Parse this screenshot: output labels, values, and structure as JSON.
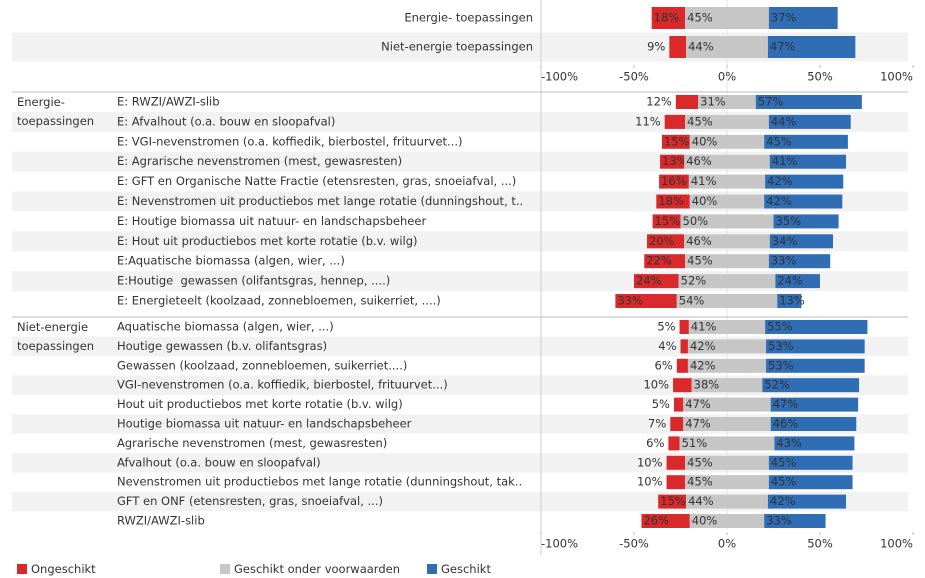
{
  "chart_data": {
    "type": "diverging_bar",
    "xlim": [
      -100,
      100
    ],
    "xticks": [
      {
        "value": -100,
        "label": "-100%"
      },
      {
        "value": -50,
        "label": "-50%"
      },
      {
        "value": 0,
        "label": "0%"
      },
      {
        "value": 50,
        "label": "50%"
      },
      {
        "value": 100,
        "label": "100%"
      }
    ],
    "series": [
      {
        "name": "Ongeschikt",
        "color": "#d9292b"
      },
      {
        "name": "Geschikt onder voorwaarden",
        "color": "#c6c6c6"
      },
      {
        "name": "Geschikt",
        "color": "#2f6db5"
      }
    ],
    "panels": [
      {
        "categories": [
          "Energie- toepassingen",
          "Niet-energie toepassingen"
        ],
        "values": [
          [
            18,
            45,
            37
          ],
          [
            9,
            44,
            47
          ]
        ],
        "value_labels": [
          [
            "18%",
            "45%",
            "37%"
          ],
          [
            "9%",
            "44%",
            "47%"
          ]
        ]
      },
      {
        "group": "Energie- toepassingen",
        "categories": [
          "E: RWZI/AWZI-slib",
          "E: Afvalhout (o.a. bouw en sloopafval)",
          "E: VGI-nevenstromen (o.a. koffiedik, bierbostel, frituurvet...)",
          "E: Agrarische nevenstromen (mest, gewasresten)",
          "E: GFT en Organische Natte Fractie (etensresten, gras, snoeiafval, ...)",
          "E: Nevenstromen uit productiebos met lange rotatie (dunningshout, t..",
          "E: Houtige biomassa uit natuur- en landschapsbeheer",
          "E: Hout uit productiebos met korte rotatie (b.v. wilg)",
          "E:Aquatische biomassa (algen, wier, ...)",
          "E:Houtige  gewassen (olifantsgras, hennep, ....)",
          "E: Energieteelt (koolzaad, zonnebloemen, suikerriet, ....)"
        ],
        "values": [
          [
            12,
            31,
            57
          ],
          [
            11,
            45,
            44
          ],
          [
            15,
            40,
            45
          ],
          [
            13,
            46,
            41
          ],
          [
            16,
            41,
            42
          ],
          [
            18,
            40,
            42
          ],
          [
            15,
            50,
            35
          ],
          [
            20,
            46,
            34
          ],
          [
            22,
            45,
            33
          ],
          [
            24,
            52,
            24
          ],
          [
            33,
            54,
            13
          ]
        ],
        "value_labels": [
          [
            "12%",
            "31%",
            "57%"
          ],
          [
            "11%",
            "45%",
            "44%"
          ],
          [
            "15%",
            "40%",
            "45%"
          ],
          [
            "13%",
            "46%",
            "41%"
          ],
          [
            "16%",
            "41%",
            "42%"
          ],
          [
            "18%",
            "40%",
            "42%"
          ],
          [
            "15%",
            "50%",
            "35%"
          ],
          [
            "20%",
            "46%",
            "34%"
          ],
          [
            "22%",
            "45%",
            "33%"
          ],
          [
            "24%",
            "52%",
            "24%"
          ],
          [
            "33%",
            "54%",
            "13%"
          ]
        ]
      },
      {
        "group": "Niet-energie toepassingen",
        "categories": [
          "Aquatische biomassa (algen, wier, ...)",
          "Houtige gewassen (b.v. olifantsgras)",
          "Gewassen (koolzaad, zonnebloemen, suikerriet....)",
          "VGI-nevenstromen (o.a. koffiedik, bierbostel, frituurvet...)",
          "Hout uit productiebos met korte rotatie (b.v. wilg)",
          "Houtige biomassa uit natuur- en landschapsbeheer",
          "Agrarische nevenstromen (mest, gewasresten)",
          "Afvalhout (o.a. bouw en sloopafval)",
          "Nevenstromen uit productiebos met lange rotatie (dunningshout, tak..",
          "GFT en ONF (etensresten, gras, snoeiafval, ...)",
          "RWZI/AWZI-slib"
        ],
        "values": [
          [
            5,
            41,
            55
          ],
          [
            4,
            42,
            53
          ],
          [
            6,
            42,
            53
          ],
          [
            10,
            38,
            52
          ],
          [
            5,
            47,
            47
          ],
          [
            7,
            47,
            46
          ],
          [
            6,
            51,
            43
          ],
          [
            10,
            45,
            45
          ],
          [
            10,
            45,
            45
          ],
          [
            15,
            44,
            42
          ],
          [
            26,
            40,
            33
          ]
        ],
        "value_labels": [
          [
            "5%",
            "41%",
            "55%"
          ],
          [
            "4%",
            "42%",
            "53%"
          ],
          [
            "6%",
            "42%",
            "53%"
          ],
          [
            "10%",
            "38%",
            "52%"
          ],
          [
            "5%",
            "47%",
            "47%"
          ],
          [
            "7%",
            "47%",
            "46%"
          ],
          [
            "6%",
            "51%",
            "43%"
          ],
          [
            "10%",
            "45%",
            "45%"
          ],
          [
            "10%",
            "45%",
            "45%"
          ],
          [
            "15%",
            "44%",
            "42%"
          ],
          [
            "26%",
            "40%",
            "33%"
          ]
        ]
      }
    ]
  }
}
